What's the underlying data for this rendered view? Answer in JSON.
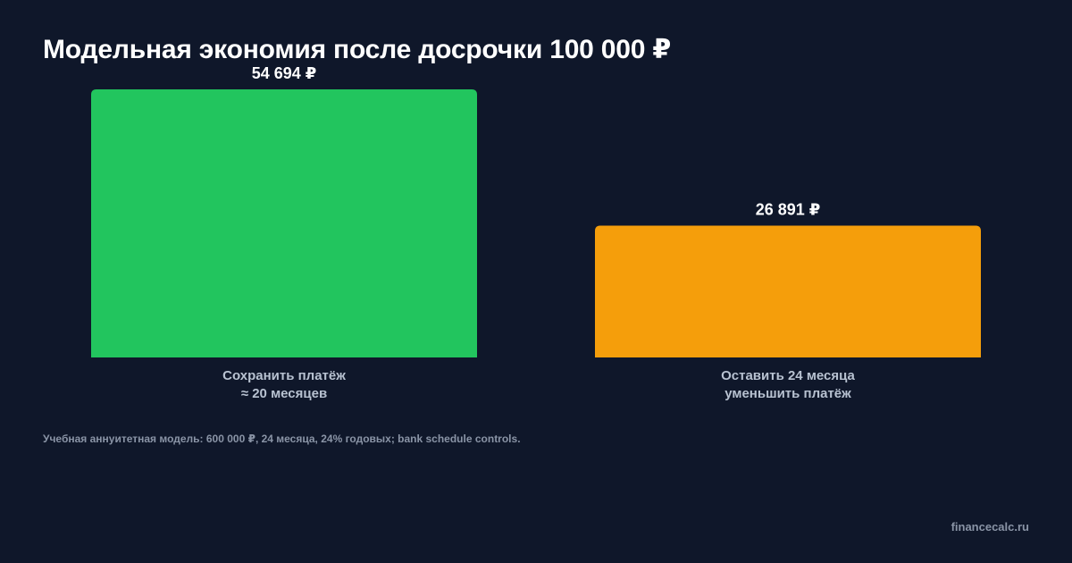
{
  "title": "Модельная экономия после досрочки 100 000 ₽",
  "chart_data": {
    "type": "bar",
    "categories": [
      [
        "Сохранить платёж",
        "≈ 20 месяцев"
      ],
      [
        "Оставить 24 месяца",
        "уменьшить платёж"
      ]
    ],
    "values": [
      54694,
      26891
    ],
    "value_labels": [
      "54 694 ₽",
      "26 891 ₽"
    ],
    "colors": [
      "#22c55e",
      "#f59e0b"
    ],
    "ylim": [
      0,
      54694
    ],
    "grid": false
  },
  "note": "Учебная аннуитетная модель: 600 000 ₽, 24 месяца, 24% годовых; bank schedule controls.",
  "brand": "financecalc.ru"
}
